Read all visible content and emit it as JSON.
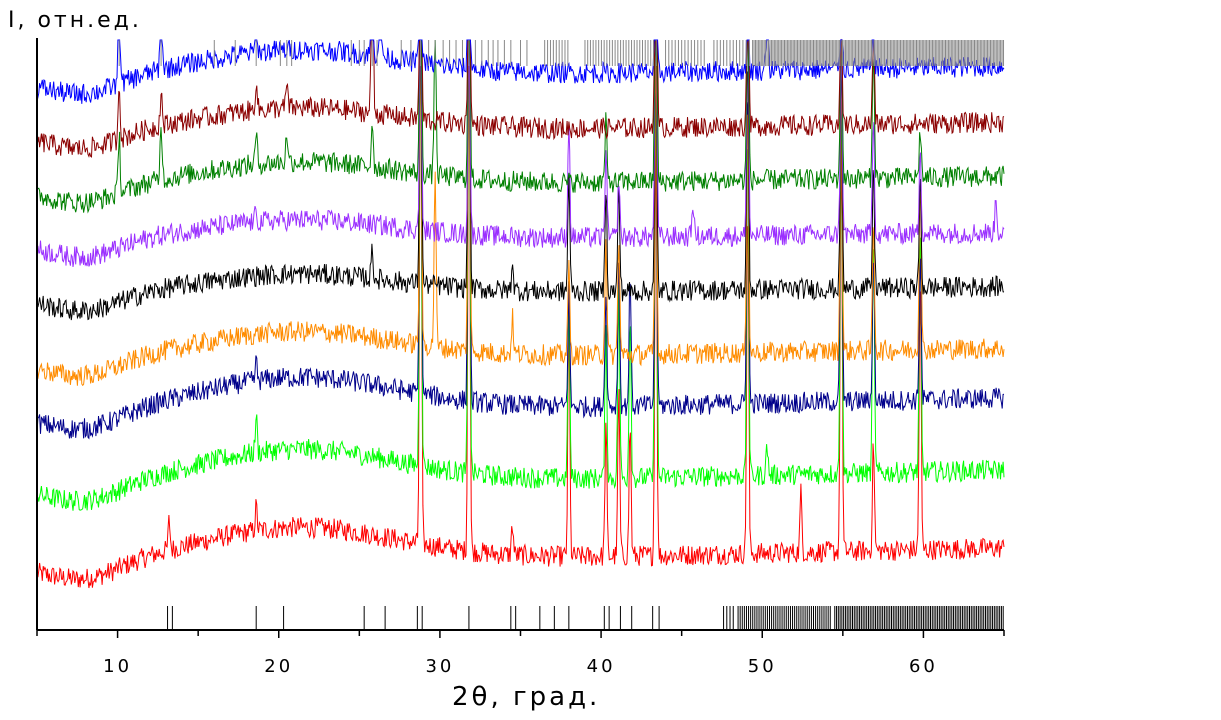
{
  "chart_data": {
    "type": "line",
    "ylabel": "I, отн.ед.",
    "xlabel": "2θ, град.",
    "xlim": [
      5,
      65
    ],
    "xticks": [
      10,
      20,
      30,
      40,
      50,
      60
    ],
    "y_axis_ticks_shown": false,
    "grid": false,
    "legend": "none",
    "series": [
      {
        "color": "#ff0000",
        "baseline": 0.06,
        "hump": 0.1,
        "peaks": [
          [
            13.2,
            0.05
          ],
          [
            18.6,
            0.04
          ],
          [
            28.8,
            0.92
          ],
          [
            31.8,
            0.95
          ],
          [
            34.5,
            0.05
          ],
          [
            38.0,
            0.4
          ],
          [
            40.3,
            0.22
          ],
          [
            41.1,
            0.28
          ],
          [
            41.8,
            0.22
          ],
          [
            43.4,
            0.75
          ],
          [
            49.1,
            0.6
          ],
          [
            52.4,
            0.1
          ],
          [
            54.9,
            0.72
          ],
          [
            56.9,
            0.18
          ],
          [
            59.8,
            0.45
          ]
        ]
      },
      {
        "color": "#00ff00",
        "baseline": 0.19,
        "hump": 0.1,
        "peaks": [
          [
            18.6,
            0.06
          ],
          [
            28.8,
            0.9
          ],
          [
            31.8,
            0.95
          ],
          [
            38.0,
            0.3
          ],
          [
            40.3,
            0.25
          ],
          [
            41.1,
            0.32
          ],
          [
            41.8,
            0.28
          ],
          [
            43.4,
            0.75
          ],
          [
            49.1,
            0.6
          ],
          [
            50.3,
            0.05
          ],
          [
            54.9,
            0.7
          ],
          [
            56.9,
            0.4
          ],
          [
            59.8,
            0.4
          ]
        ]
      },
      {
        "color": "#00008b",
        "baseline": 0.31,
        "hump": 0.1,
        "peaks": [
          [
            18.6,
            0.03
          ],
          [
            28.8,
            0.85
          ],
          [
            31.8,
            0.95
          ],
          [
            38.0,
            0.2
          ],
          [
            40.3,
            0.2
          ],
          [
            41.1,
            0.25
          ],
          [
            41.8,
            0.22
          ],
          [
            43.4,
            0.65
          ],
          [
            49.1,
            0.55
          ],
          [
            54.9,
            0.62
          ],
          [
            56.9,
            0.25
          ],
          [
            59.8,
            0.25
          ]
        ]
      },
      {
        "color": "#ff8c00",
        "baseline": 0.4,
        "hump": 0.08,
        "peaks": [
          [
            28.8,
            0.65
          ],
          [
            29.7,
            0.3
          ],
          [
            31.8,
            0.75
          ],
          [
            34.5,
            0.06
          ],
          [
            38.0,
            0.15
          ],
          [
            40.3,
            0.2
          ],
          [
            41.1,
            0.2
          ],
          [
            43.4,
            0.55
          ],
          [
            49.1,
            0.45
          ],
          [
            54.9,
            0.5
          ],
          [
            56.9,
            0.22
          ],
          [
            59.8,
            0.3
          ]
        ]
      },
      {
        "color": "#000000",
        "baseline": 0.51,
        "hump": 0.06,
        "peaks": [
          [
            25.8,
            0.05
          ],
          [
            28.8,
            0.6
          ],
          [
            31.8,
            0.65
          ],
          [
            34.5,
            0.05
          ],
          [
            38.0,
            0.2
          ],
          [
            40.3,
            0.18
          ],
          [
            41.1,
            0.18
          ],
          [
            43.4,
            0.55
          ],
          [
            49.1,
            0.4
          ],
          [
            54.9,
            0.4
          ],
          [
            56.9,
            0.2
          ],
          [
            59.8,
            0.18
          ]
        ]
      },
      {
        "color": "#9b30ff",
        "baseline": 0.6,
        "hump": 0.06,
        "peaks": [
          [
            18.6,
            0.02
          ],
          [
            28.8,
            0.45
          ],
          [
            31.8,
            0.5
          ],
          [
            38.0,
            0.2
          ],
          [
            40.3,
            0.15
          ],
          [
            41.1,
            0.1
          ],
          [
            43.4,
            0.55
          ],
          [
            45.7,
            0.06
          ],
          [
            49.1,
            0.4
          ],
          [
            54.9,
            0.35
          ],
          [
            56.9,
            0.2
          ],
          [
            59.8,
            0.15
          ],
          [
            64.5,
            0.06
          ]
        ]
      },
      {
        "color": "#008000",
        "baseline": 0.69,
        "hump": 0.07,
        "peaks": [
          [
            10.1,
            0.1
          ],
          [
            12.7,
            0.1
          ],
          [
            18.6,
            0.05
          ],
          [
            20.5,
            0.05
          ],
          [
            25.8,
            0.08
          ],
          [
            28.8,
            0.5
          ],
          [
            29.7,
            0.25
          ],
          [
            31.8,
            0.55
          ],
          [
            40.3,
            0.1
          ],
          [
            43.4,
            0.6
          ],
          [
            49.1,
            0.35
          ],
          [
            54.9,
            0.32
          ],
          [
            56.9,
            0.22
          ],
          [
            59.8,
            0.08
          ]
        ]
      },
      {
        "color": "#8b0000",
        "baseline": 0.78,
        "hump": 0.07,
        "peaks": [
          [
            10.1,
            0.1
          ],
          [
            12.7,
            0.06
          ],
          [
            18.6,
            0.05
          ],
          [
            20.5,
            0.04
          ],
          [
            25.8,
            0.35
          ],
          [
            28.8,
            0.5
          ],
          [
            31.8,
            0.55
          ],
          [
            43.4,
            0.6
          ],
          [
            49.1,
            0.3
          ],
          [
            54.9,
            0.2
          ],
          [
            56.9,
            0.15
          ]
        ]
      },
      {
        "color": "#0000ff",
        "baseline": 0.87,
        "hump": 0.08,
        "peaks": [
          [
            10.1,
            0.15
          ],
          [
            12.7,
            0.15
          ],
          [
            18.6,
            0.05
          ],
          [
            25.8,
            0.3
          ],
          [
            26.3,
            0.3
          ],
          [
            28.8,
            0.5
          ],
          [
            31.8,
            0.45
          ],
          [
            43.4,
            0.45
          ],
          [
            49.1,
            0.15
          ],
          [
            50.3,
            0.12
          ],
          [
            54.9,
            0.15
          ],
          [
            56.9,
            0.08
          ]
        ]
      }
    ],
    "bottom_reference_lines": [
      13.1,
      13.4,
      18.6,
      20.3,
      25.3,
      26.6,
      28.6,
      28.9,
      31.8,
      34.4,
      34.7,
      36.2,
      37.1,
      38.0,
      40.2,
      40.5,
      41.2,
      41.9,
      43.2,
      43.6,
      47.6,
      47.8,
      48.0,
      48.2
    ],
    "bottom_reference_dense_regions": [
      [
        48.5,
        54.3,
        0.13
      ],
      [
        54.5,
        65.0,
        0.11
      ]
    ],
    "top_reference_lines": [
      10.1,
      12.7,
      16.0,
      17.3,
      18.6,
      20.1,
      20.5,
      20.8,
      24.5,
      25.0,
      25.3,
      25.8,
      26.1,
      27.6,
      28.2,
      28.8,
      29.3,
      29.7,
      30.2,
      30.6,
      31.0,
      31.4,
      31.8,
      32.2,
      32.6,
      33.0,
      33.3,
      33.6,
      34.0,
      34.4,
      35.0,
      35.4
    ],
    "top_reference_dense_regions": [
      [
        36.5,
        38.0,
        0.18
      ],
      [
        39.0,
        43.5,
        0.17
      ],
      [
        44.0,
        46.5,
        0.2
      ],
      [
        47.0,
        49.3,
        0.2
      ],
      [
        49.4,
        65.0,
        0.09
      ]
    ]
  }
}
